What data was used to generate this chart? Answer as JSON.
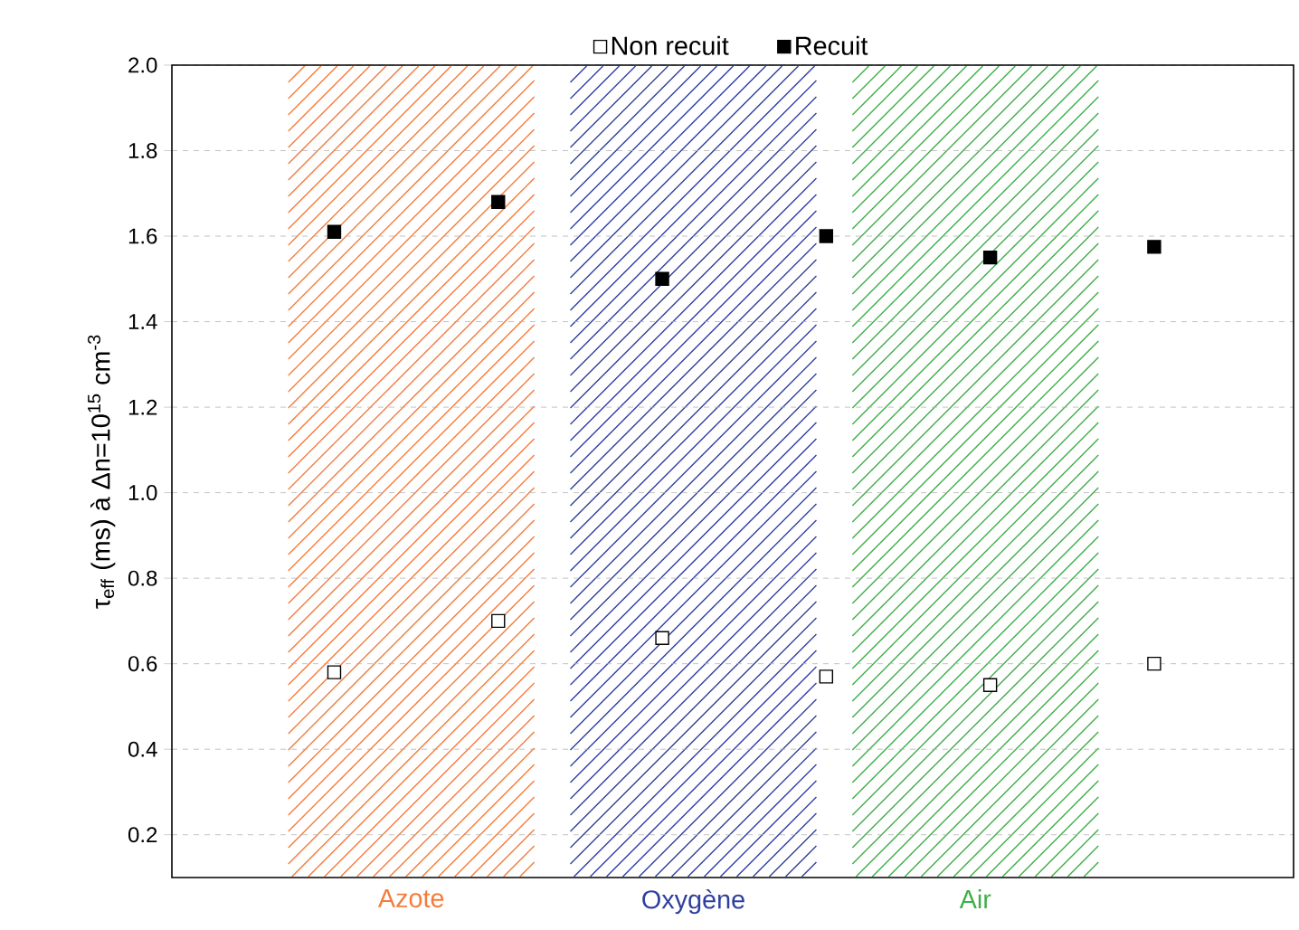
{
  "chart_data": {
    "type": "scatter",
    "ylabel": "τ$_{eff}$ (ms) à Δn=10$^{15}$ cm$^{-3}$",
    "categories": [
      null,
      null,
      null,
      null,
      null,
      null
    ],
    "ylim": [
      0.1,
      2.0
    ],
    "yticks": [
      0.2,
      0.4,
      0.6,
      0.8,
      {
        "value": 1.0,
        "label": "1.0"
      },
      1.2,
      1.4,
      1.6,
      1.8,
      {
        "value": 2.0,
        "label": "2.0"
      }
    ],
    "series": [
      {
        "name": "Non recuit",
        "color": "#ffffff",
        "values": [
          0.58,
          0.7,
          0.66,
          0.57,
          0.55,
          0.6
        ]
      },
      {
        "name": "Recuit",
        "color": "#000000",
        "values": [
          1.61,
          1.68,
          1.5,
          1.6,
          1.55,
          1.575
        ]
      }
    ],
    "annotations": [
      "Azote",
      "Oxygène",
      "Air"
    ],
    "marker": "square",
    "grid": "y",
    "legend": "top"
  }
}
